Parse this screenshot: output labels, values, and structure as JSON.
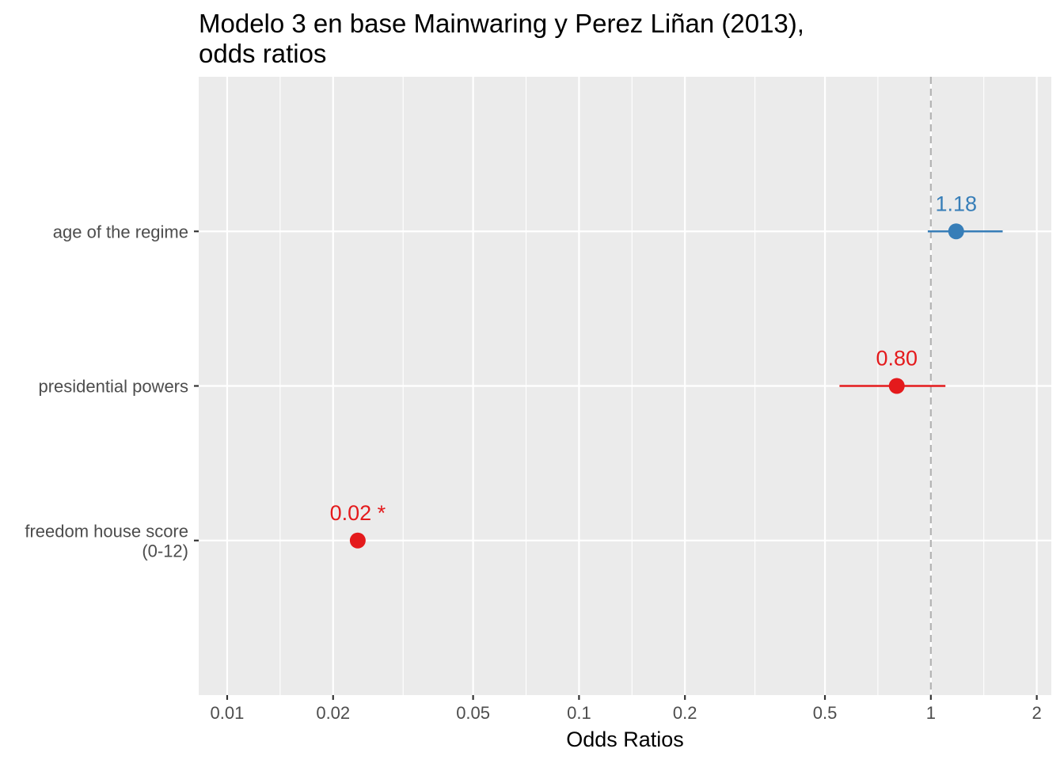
{
  "chart_data": {
    "type": "scatter",
    "title_lines": [
      "Modelo 3 en base Mainwaring y Perez Liñan (2013),",
      "odds ratios"
    ],
    "xlabel": "Odds Ratios",
    "ylabel": "",
    "x_scale": "log10",
    "xlim": [
      0.0083,
      2.2
    ],
    "x_ticks": [
      0.01,
      0.02,
      0.05,
      0.1,
      0.2,
      0.5,
      1,
      2
    ],
    "x_tick_labels": [
      "0.01",
      "0.02",
      "0.05",
      "0.1",
      "0.2",
      "0.5",
      "1",
      "2"
    ],
    "reference_line": 1,
    "grid": true,
    "legend": "none",
    "terms": [
      {
        "term": "age of the regime",
        "estimate": 1.18,
        "ci_low": 0.98,
        "ci_high": 1.6,
        "label": "1.18",
        "color": "#377eb8"
      },
      {
        "term": "presidential powers",
        "estimate": 0.8,
        "ci_low": 0.55,
        "ci_high": 1.1,
        "label": "0.80",
        "color": "#e41a1c"
      },
      {
        "term": "freedom house score\n(0-12)",
        "estimate": 0.0235,
        "ci_low": 0.0235,
        "ci_high": 0.0235,
        "label": "0.02 *",
        "color": "#e41a1c"
      }
    ]
  }
}
